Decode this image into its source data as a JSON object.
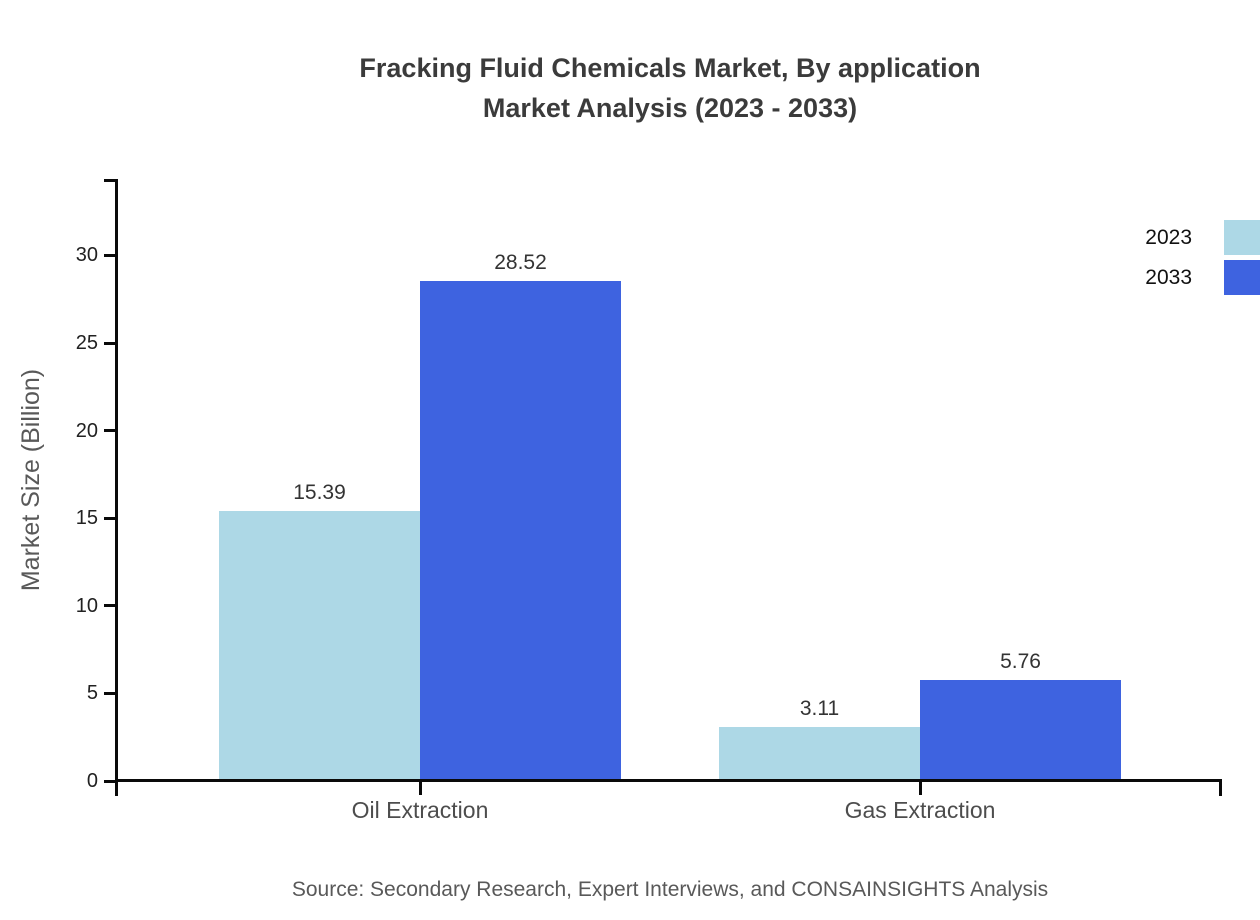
{
  "title": {
    "line1": "Fracking Fluid Chemicals Market, By application",
    "line2": "Market Analysis (2023 - 2033)"
  },
  "source_text": "Source: Secondary Research, Expert Interviews, and CONSAINSIGHTS Analysis",
  "legend": {
    "entries": [
      {
        "label": "2023",
        "color": "#ADD8E6"
      },
      {
        "label": "2033",
        "color": "#3E63E0"
      }
    ]
  },
  "chart_data": {
    "type": "bar",
    "title": "Fracking Fluid Chemicals Market, By application Market Analysis (2023 - 2033)",
    "categories": [
      "Oil Extraction",
      "Gas Extraction"
    ],
    "series": [
      {
        "name": "2023",
        "color": "#ADD8E6",
        "values": [
          15.39,
          3.11
        ]
      },
      {
        "name": "2033",
        "color": "#3E63E0",
        "values": [
          28.52,
          5.76
        ]
      }
    ],
    "xlabel": "",
    "ylabel": "Market Size (Billion)",
    "ylim": [
      0,
      34.3
    ],
    "yticks": [
      0,
      5,
      10,
      15,
      20,
      25,
      30
    ],
    "grid": false,
    "value_labels": true,
    "value_label_format": "2dp",
    "legend_position": "top-right"
  }
}
